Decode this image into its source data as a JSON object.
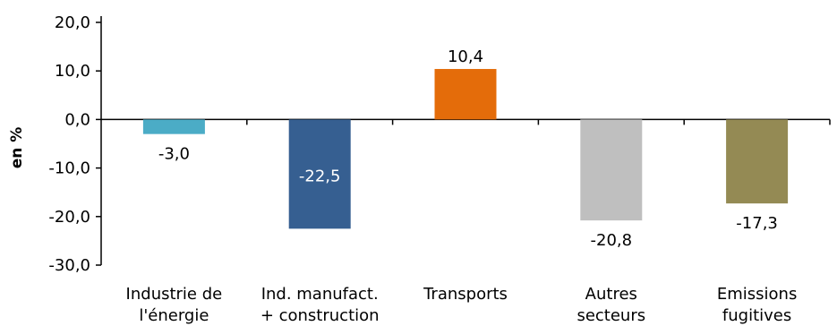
{
  "chart_data": {
    "type": "bar",
    "title": "",
    "xlabel": "",
    "ylabel": "en %",
    "ylim": [
      -30,
      20
    ],
    "yticks": [
      "20,0",
      "10,0",
      "0,0",
      "-10,0",
      "-20,0",
      "-30,0"
    ],
    "ytick_values": [
      20,
      10,
      0,
      -10,
      -20,
      -30
    ],
    "grid": false,
    "categories": [
      [
        "Industrie de",
        "l'énergie"
      ],
      [
        "Ind. manufact.",
        "+ construction"
      ],
      [
        "Transports"
      ],
      [
        "Autres",
        "secteurs"
      ],
      [
        "Emissions",
        "fugitives"
      ]
    ],
    "values": [
      -3.0,
      -22.5,
      10.4,
      -20.8,
      -17.3
    ],
    "value_labels": [
      "-3,0",
      "-22,5",
      "10,4",
      "-20,8",
      "-17,3"
    ],
    "label_positions": [
      "below",
      "inside",
      "above",
      "below",
      "below"
    ],
    "label_colors": [
      "#000000",
      "#ffffff",
      "#000000",
      "#000000",
      "#000000"
    ],
    "colors": [
      "#4bacc6",
      "#365f91",
      "#e46c0a",
      "#bfbfbf",
      "#948a54"
    ]
  }
}
